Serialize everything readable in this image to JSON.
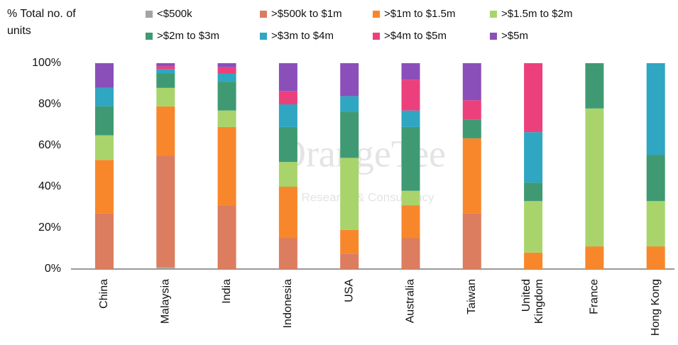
{
  "chart_data": {
    "type": "stacked-bar",
    "y_label": "% Total no. of units",
    "watermark": "OrangeTee",
    "watermark_subtitle": "Research & Consultancy",
    "categories": [
      "China",
      "Malaysia",
      "India",
      "Indonesia",
      "USA",
      "Australia",
      "Taiwan",
      "United Kingdom",
      "France",
      "Hong Kong"
    ],
    "series": [
      {
        "name": "<$500k",
        "color": "#a3a3a3",
        "values": [
          0,
          1,
          0,
          0,
          0,
          0,
          0,
          0,
          0,
          0
        ]
      },
      {
        "name": ">$500k to $1m",
        "color": "#db7d5e",
        "values": [
          27,
          54,
          31,
          15,
          7.5,
          15,
          27,
          0,
          0,
          0
        ]
      },
      {
        "name": ">$1m to $1.5m",
        "color": "#f8872c",
        "values": [
          26,
          24,
          38,
          25,
          11.5,
          16,
          36.5,
          8,
          11,
          11
        ]
      },
      {
        "name": ">$1.5m to $2m",
        "color": "#a9d46c",
        "values": [
          12,
          9,
          8,
          12,
          35,
          7,
          0,
          25,
          67,
          22
        ]
      },
      {
        "name": ">$2m to $3m",
        "color": "#3f9a73",
        "values": [
          14,
          7,
          14,
          17,
          22.5,
          31,
          9,
          9,
          22,
          22.5
        ]
      },
      {
        "name": ">$3m to $4m",
        "color": "#2fa6c2",
        "values": [
          9,
          2,
          4,
          11,
          7.5,
          8,
          0,
          24.5,
          0,
          44.5
        ]
      },
      {
        "name": ">$4m to $5m",
        "color": "#ec407d",
        "values": [
          0,
          1.5,
          3,
          6.5,
          0,
          15,
          9.5,
          33.5,
          0,
          0
        ]
      },
      {
        "name": ">$5m",
        "color": "#8b4fb9",
        "values": [
          12,
          1.5,
          2,
          13.5,
          16,
          8,
          18,
          0,
          0,
          0
        ]
      }
    ],
    "ylim": [
      0,
      100
    ],
    "yticks": [
      {
        "value": 0,
        "label": "0%"
      },
      {
        "value": 20,
        "label": "20%"
      },
      {
        "value": 40,
        "label": "40%"
      },
      {
        "value": 60,
        "label": "60%"
      },
      {
        "value": 80,
        "label": "80%"
      },
      {
        "value": 100,
        "label": "100%"
      }
    ]
  }
}
